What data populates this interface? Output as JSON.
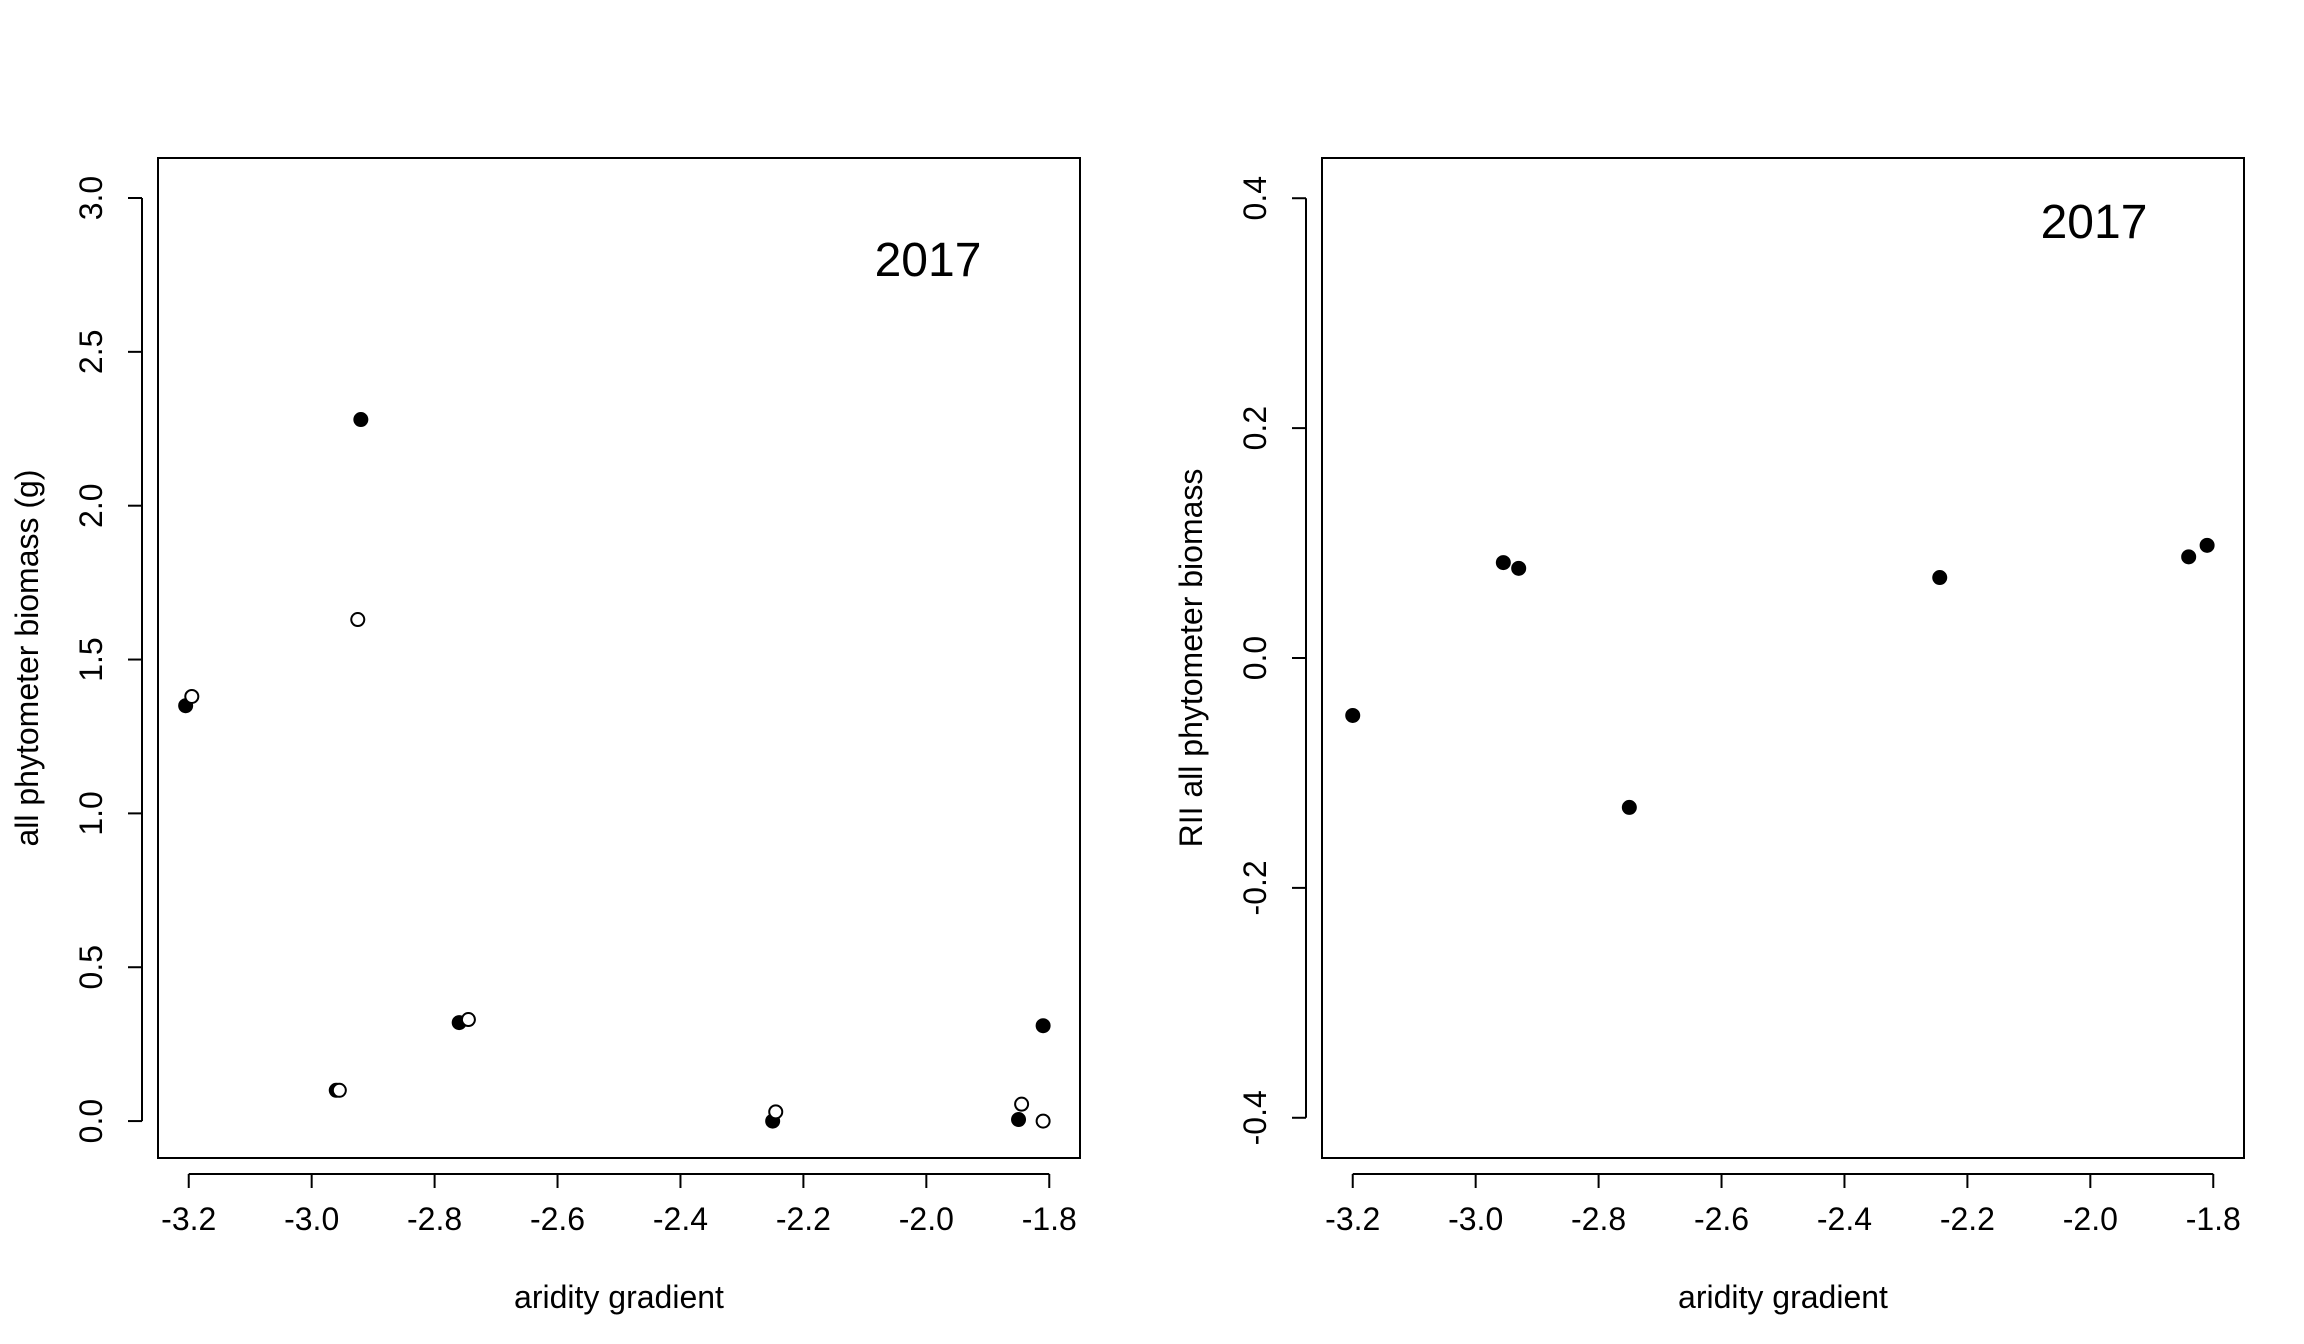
{
  "chart_data": [
    {
      "type": "scatter",
      "title": "",
      "xlabel": "aridity gradient",
      "ylabel": "all phytometer biomass (g)",
      "annotation": "2017",
      "xlim": [
        -3.25,
        -1.75
      ],
      "ylim": [
        -0.12,
        3.13
      ],
      "xticks": [
        -3.2,
        -3.0,
        -2.8,
        -2.6,
        -2.4,
        -2.2,
        -2.0,
        -1.8
      ],
      "xtick_labels": [
        "-3.2",
        "-3.0",
        "-2.8",
        "-2.6",
        "-2.4",
        "-2.2",
        "-2.0",
        "-1.8"
      ],
      "yticks": [
        0.0,
        0.5,
        1.0,
        1.5,
        2.0,
        2.5,
        3.0
      ],
      "ytick_labels": [
        "0.0",
        "0.5",
        "1.0",
        "1.5",
        "2.0",
        "2.5",
        "3.0"
      ],
      "grid": false,
      "series": [
        {
          "marker": "filled-circle",
          "color": "#000000",
          "points": [
            {
              "x": -3.205,
              "y": 1.35
            },
            {
              "x": -2.92,
              "y": 2.28
            },
            {
              "x": -2.96,
              "y": 0.1
            },
            {
              "x": -2.76,
              "y": 0.32
            },
            {
              "x": -2.25,
              "y": 0.0
            },
            {
              "x": -1.85,
              "y": 0.005
            },
            {
              "x": -1.81,
              "y": 0.31
            }
          ]
        },
        {
          "marker": "open-circle",
          "color": "#000000",
          "points": [
            {
              "x": -3.195,
              "y": 1.38
            },
            {
              "x": -2.925,
              "y": 1.63
            },
            {
              "x": -2.955,
              "y": 0.1
            },
            {
              "x": -2.745,
              "y": 0.33
            },
            {
              "x": -2.245,
              "y": 0.03
            },
            {
              "x": -1.845,
              "y": 0.055
            },
            {
              "x": -1.81,
              "y": 0.0
            }
          ]
        }
      ]
    },
    {
      "type": "scatter",
      "title": "",
      "xlabel": "aridity gradient",
      "ylabel": "RII all phytometer biomass",
      "annotation": "2017",
      "xlim": [
        -3.25,
        -1.75
      ],
      "ylim": [
        -0.435,
        0.435
      ],
      "xticks": [
        -3.2,
        -3.0,
        -2.8,
        -2.6,
        -2.4,
        -2.2,
        -2.0,
        -1.8
      ],
      "xtick_labels": [
        "-3.2",
        "-3.0",
        "-2.8",
        "-2.6",
        "-2.4",
        "-2.2",
        "-2.0",
        "-1.8"
      ],
      "yticks": [
        -0.4,
        -0.2,
        0.0,
        0.2,
        0.4
      ],
      "ytick_labels": [
        "-0.4",
        "-0.2",
        "0.0",
        "0.2",
        "0.4"
      ],
      "grid": false,
      "series": [
        {
          "marker": "filled-circle",
          "color": "#000000",
          "points": [
            {
              "x": -3.2,
              "y": -0.05
            },
            {
              "x": -2.955,
              "y": 0.083
            },
            {
              "x": -2.93,
              "y": 0.078
            },
            {
              "x": -2.75,
              "y": -0.13
            },
            {
              "x": -2.245,
              "y": 0.07
            },
            {
              "x": -1.84,
              "y": 0.088
            },
            {
              "x": -1.81,
              "y": 0.098
            }
          ]
        }
      ]
    }
  ]
}
